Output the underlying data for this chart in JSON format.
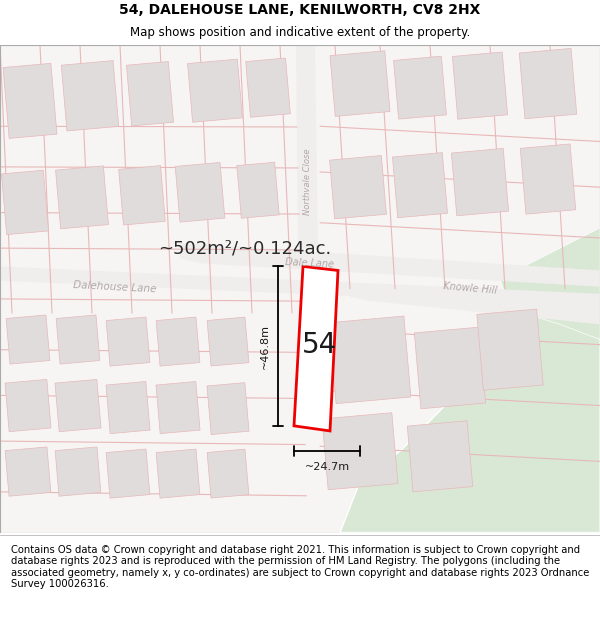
{
  "title_line1": "54, DALEHOUSE LANE, KENILWORTH, CV8 2HX",
  "title_line2": "Map shows position and indicative extent of the property.",
  "footer_text": "Contains OS data © Crown copyright and database right 2021. This information is subject to Crown copyright and database rights 2023 and is reproduced with the permission of HM Land Registry. The polygons (including the associated geometry, namely x, y co-ordinates) are subject to Crown copyright and database rights 2023 Ordnance Survey 100026316.",
  "area_label": "~502m²/~0.124ac.",
  "property_number": "54",
  "dim_width": "~24.7m",
  "dim_height": "~46.8m",
  "map_bg": "#f7f4f4",
  "green_color": "#d8e8d5",
  "plot_outline_color": "#ee0000",
  "plot_fill_color": "#ffffff",
  "building_color": "#e0dcdc",
  "parcel_line_color": "#e8b8b8",
  "road_label_color": "#b0a8a8",
  "dim_line_color": "#000000",
  "title_fontsize": 10,
  "subtitle_fontsize": 8.5,
  "footer_fontsize": 7.2
}
